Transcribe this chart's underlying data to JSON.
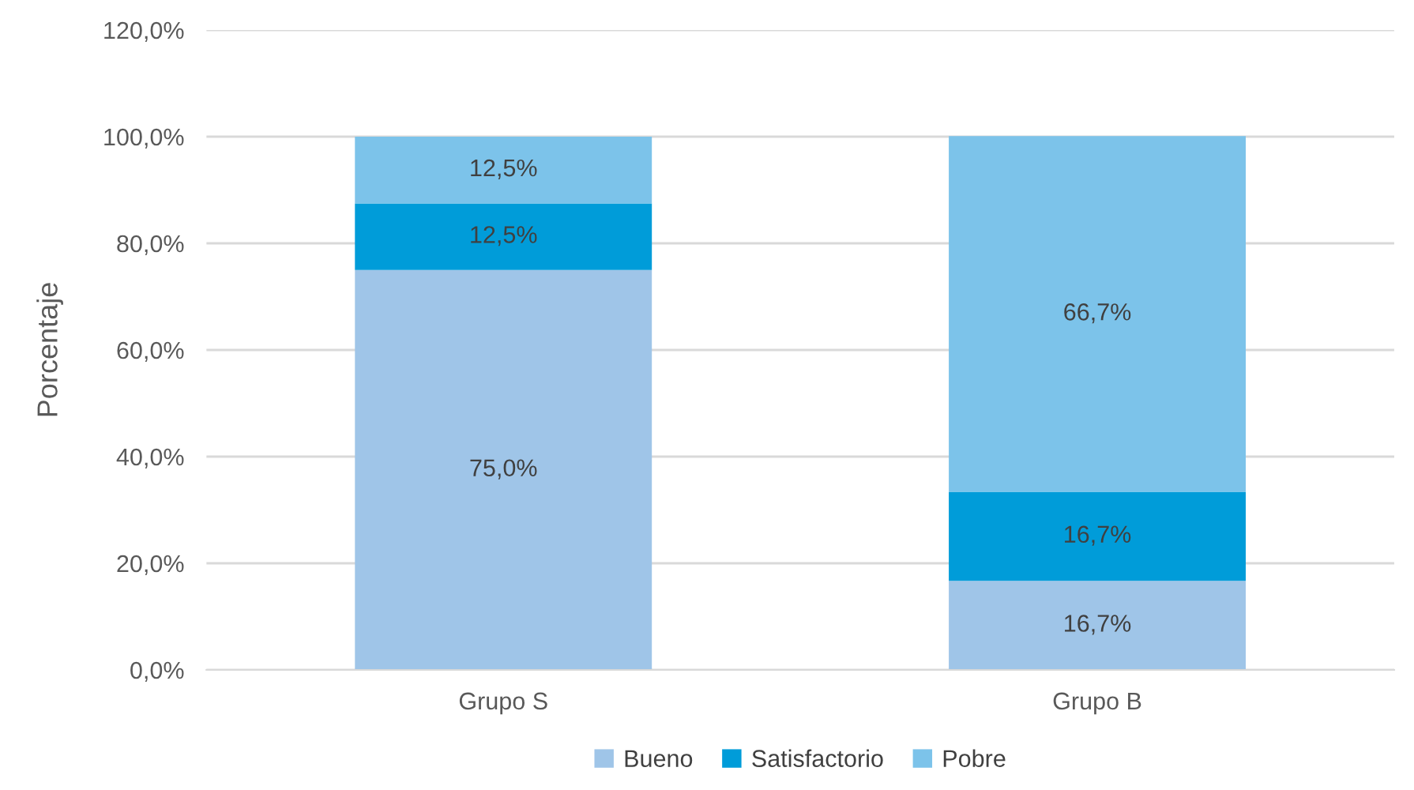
{
  "chart_data": {
    "type": "bar",
    "stacked": true,
    "ylabel": "Porcentaje",
    "categories": [
      "Grupo S",
      "Grupo B"
    ],
    "series": [
      {
        "name": "Bueno",
        "color": "#9fc5e8",
        "values": [
          75.0,
          16.7
        ],
        "value_labels": [
          "75,0%",
          "16,7%"
        ]
      },
      {
        "name": "Satisfactorio",
        "color": "#009cd9",
        "values": [
          12.5,
          16.7
        ],
        "value_labels": [
          "12,5%",
          "16,7%"
        ]
      },
      {
        "name": "Pobre",
        "color": "#7cc3ea",
        "values": [
          12.5,
          66.7
        ],
        "value_labels": [
          "12,5%",
          "66,7%"
        ]
      }
    ],
    "ylim": [
      0,
      120
    ],
    "yticks": [
      {
        "value": 0,
        "label": "0,0%"
      },
      {
        "value": 20,
        "label": "20,0%"
      },
      {
        "value": 40,
        "label": "40,0%"
      },
      {
        "value": 60,
        "label": "60,0%"
      },
      {
        "value": 80,
        "label": "80,0%"
      },
      {
        "value": 100,
        "label": "100,0%"
      },
      {
        "value": 120,
        "label": "120,0%"
      }
    ],
    "grid": "y",
    "legend": "bottom"
  }
}
